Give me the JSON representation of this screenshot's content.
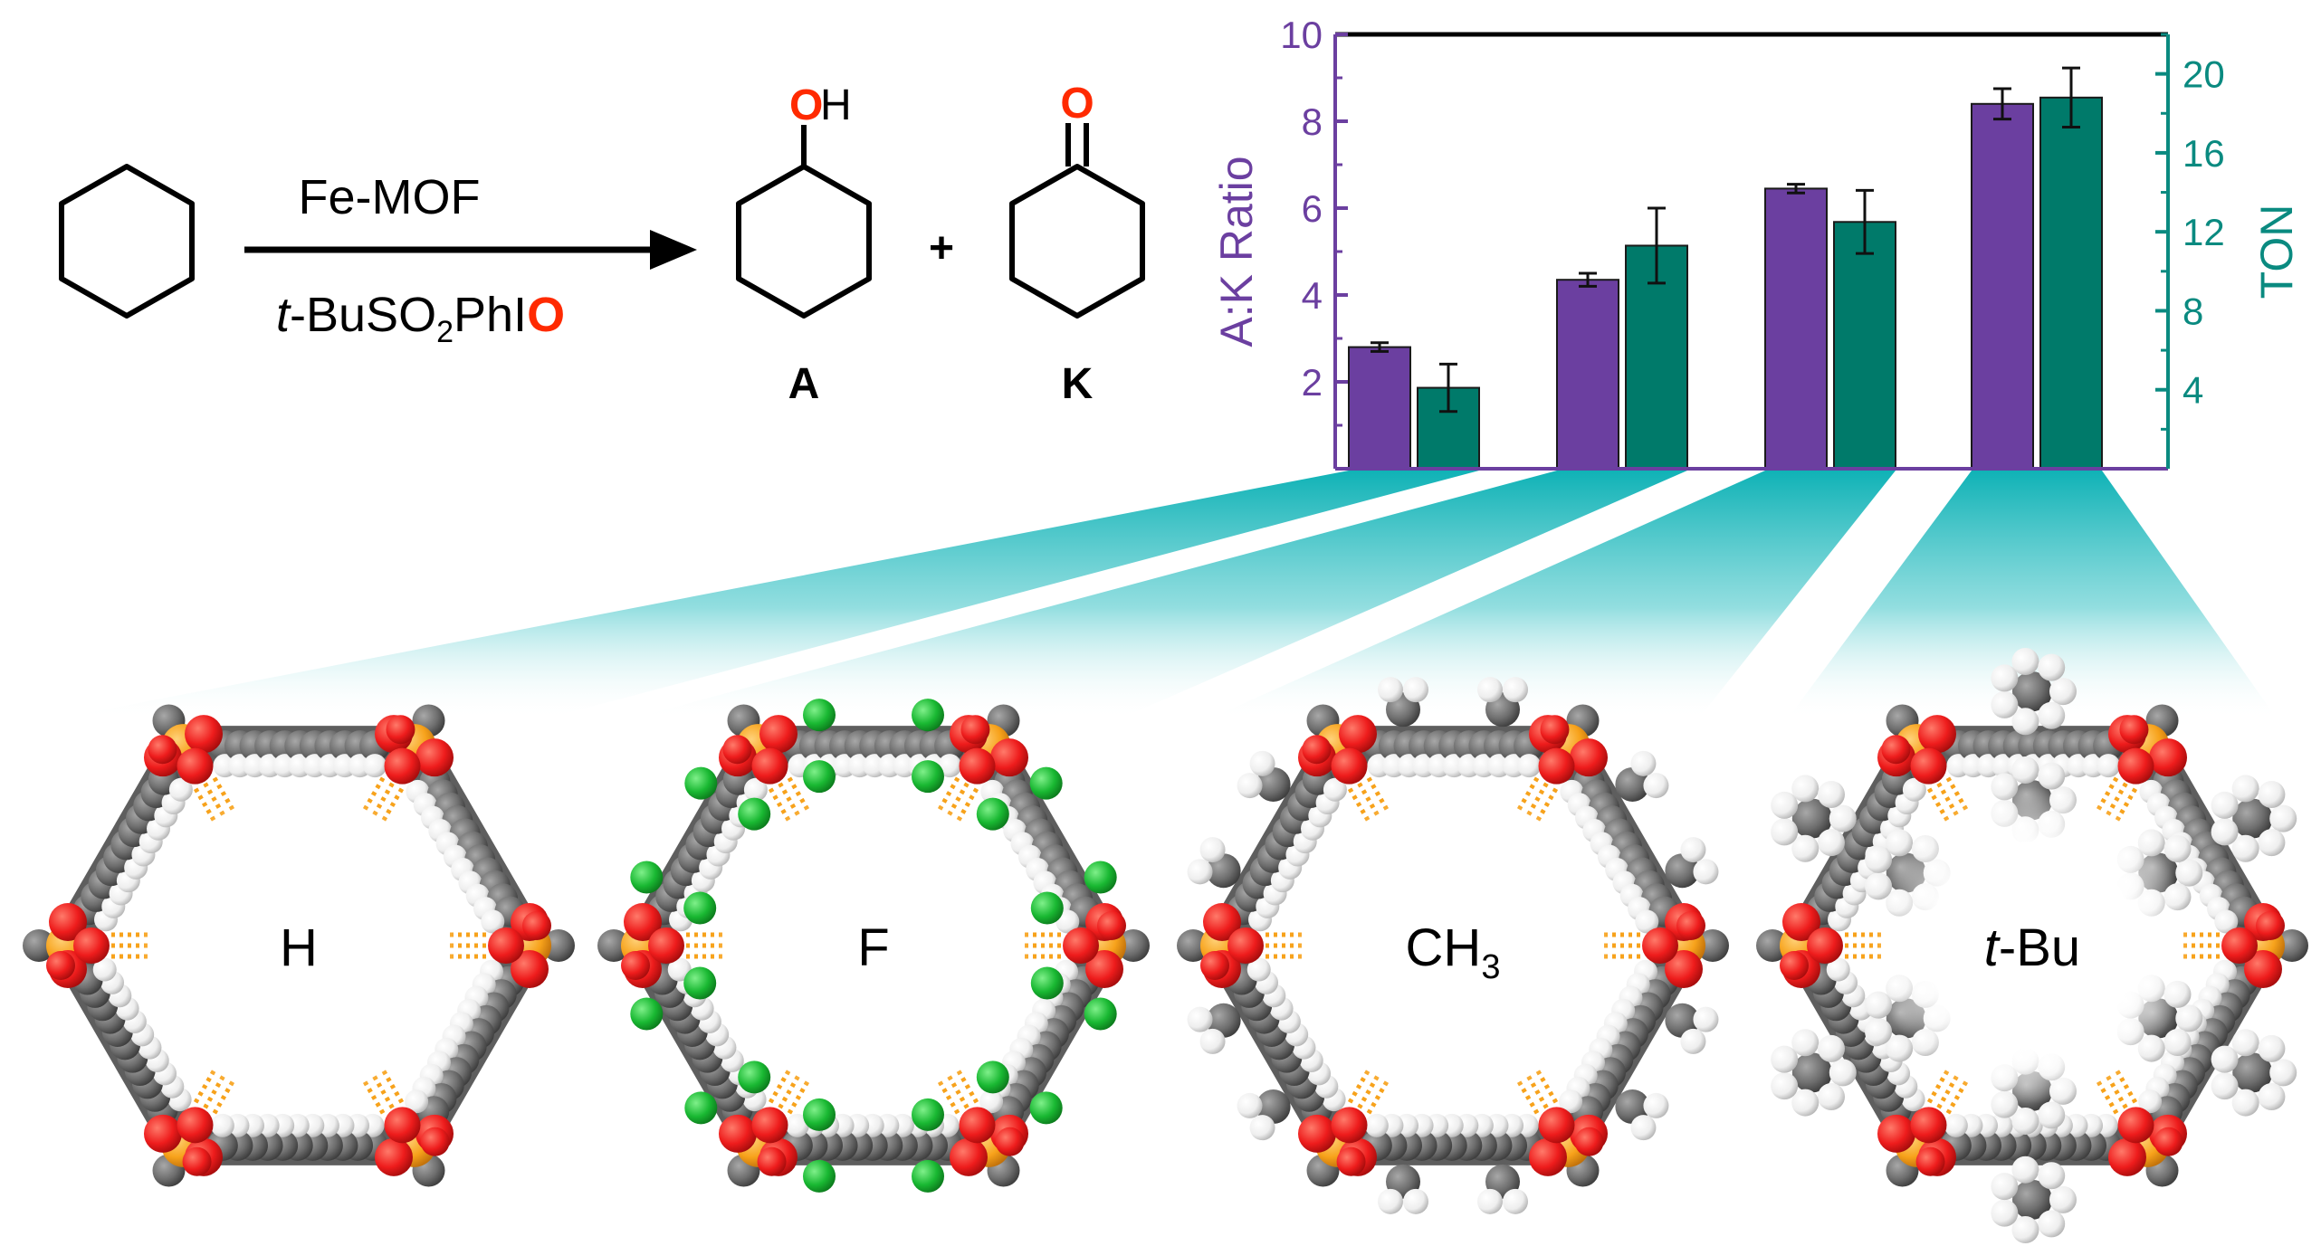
{
  "scheme": {
    "catalyst": "Fe-MOF",
    "oxidant_prefix": "t",
    "oxidant_main": "-BuSO",
    "oxidant_sub": "2",
    "oxidant_tail": "PhI",
    "oxidant_o": "O",
    "alcohol_o": "O",
    "alcohol_h": "H",
    "ketone_o": "O",
    "plus": "+",
    "product_a": "A",
    "product_k": "K"
  },
  "colors": {
    "ratio_bar": "#6b3fa0",
    "ton_bar": "#007a6a",
    "left_axis": "#6b3fa0",
    "right_axis": "#0a8a80",
    "oxygen": "#ff2a00",
    "fan_cyan": "#1ab8b8",
    "atom_red": "#ee1c1c",
    "atom_orange": "#f7a21b",
    "atom_gray": "#6e6e6e",
    "atom_white": "#f4f4f4",
    "atom_green": "#19b832"
  },
  "chart_data": {
    "type": "bar",
    "categories": [
      "H",
      "F",
      "CH3",
      "t-Bu"
    ],
    "series": [
      {
        "name": "A:K Ratio",
        "axis": "left",
        "values": [
          2.8,
          4.35,
          6.45,
          8.4
        ],
        "errors": [
          0.1,
          0.15,
          0.1,
          0.35
        ]
      },
      {
        "name": "TON",
        "axis": "right",
        "values": [
          4.1,
          11.3,
          12.5,
          18.8
        ],
        "errors": [
          1.2,
          1.9,
          1.6,
          1.5
        ]
      }
    ],
    "ylabel": "A:K Ratio",
    "y2label": "TON",
    "ylim": [
      0,
      10
    ],
    "y2lim": [
      0,
      22
    ],
    "yticks": [
      "2",
      "4",
      "6",
      "8",
      "10"
    ],
    "y2ticks": [
      "4",
      "8",
      "12",
      "16",
      "20"
    ],
    "xticks_visible": false,
    "grid": false,
    "legend": "none"
  },
  "pores": [
    {
      "label_prefix": "",
      "label": "H",
      "label_sub": "",
      "substituent": "H"
    },
    {
      "label_prefix": "",
      "label": "F",
      "label_sub": "",
      "substituent": "F"
    },
    {
      "label_prefix": "",
      "label": "CH",
      "label_sub": "3",
      "substituent": "CH3"
    },
    {
      "label_prefix": "t",
      "label": "-Bu",
      "label_sub": "",
      "substituent": "tBu"
    }
  ]
}
